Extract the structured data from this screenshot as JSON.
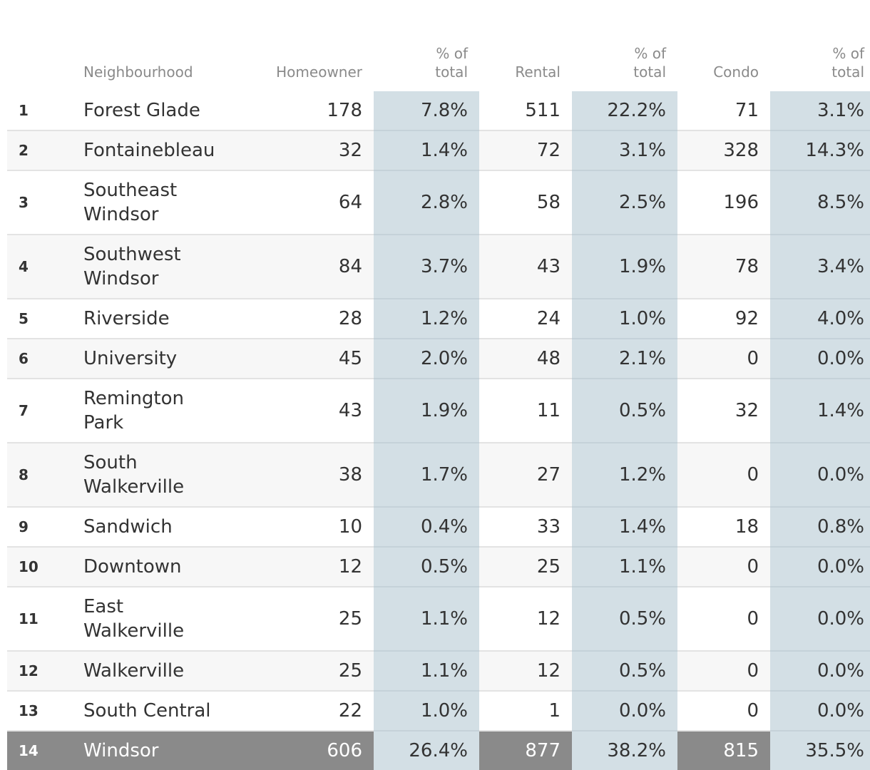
{
  "headers": {
    "neighbourhood": "Neighbourhood",
    "homeowner": "Homeowner",
    "homeowner_pct": [
      "% of",
      "total"
    ],
    "rental": "Rental",
    "rental_pct": [
      "% of",
      "total"
    ],
    "condo": "Condo",
    "condo_pct": [
      "% of",
      "total"
    ]
  },
  "rows": [
    {
      "rank": "1",
      "name": "Forest Glade",
      "homeowner": "178",
      "homeowner_pct": "7.8%",
      "rental": "511",
      "rental_pct": "22.2%",
      "condo": "71",
      "condo_pct": "3.1%"
    },
    {
      "rank": "2",
      "name": "Fontainebleau",
      "homeowner": "32",
      "homeowner_pct": "1.4%",
      "rental": "72",
      "rental_pct": "3.1%",
      "condo": "328",
      "condo_pct": "14.3%"
    },
    {
      "rank": "3",
      "name": "Southeast Windsor",
      "homeowner": "64",
      "homeowner_pct": "2.8%",
      "rental": "58",
      "rental_pct": "2.5%",
      "condo": "196",
      "condo_pct": "8.5%"
    },
    {
      "rank": "4",
      "name": "Southwest Windsor",
      "homeowner": "84",
      "homeowner_pct": "3.7%",
      "rental": "43",
      "rental_pct": "1.9%",
      "condo": "78",
      "condo_pct": "3.4%"
    },
    {
      "rank": "5",
      "name": "Riverside",
      "homeowner": "28",
      "homeowner_pct": "1.2%",
      "rental": "24",
      "rental_pct": "1.0%",
      "condo": "92",
      "condo_pct": "4.0%"
    },
    {
      "rank": "6",
      "name": "University",
      "homeowner": "45",
      "homeowner_pct": "2.0%",
      "rental": "48",
      "rental_pct": "2.1%",
      "condo": "0",
      "condo_pct": "0.0%"
    },
    {
      "rank": "7",
      "name": "Remington Park",
      "homeowner": "43",
      "homeowner_pct": "1.9%",
      "rental": "11",
      "rental_pct": "0.5%",
      "condo": "32",
      "condo_pct": "1.4%"
    },
    {
      "rank": "8",
      "name": "South Walkerville",
      "homeowner": "38",
      "homeowner_pct": "1.7%",
      "rental": "27",
      "rental_pct": "1.2%",
      "condo": "0",
      "condo_pct": "0.0%"
    },
    {
      "rank": "9",
      "name": "Sandwich",
      "homeowner": "10",
      "homeowner_pct": "0.4%",
      "rental": "33",
      "rental_pct": "1.4%",
      "condo": "18",
      "condo_pct": "0.8%"
    },
    {
      "rank": "10",
      "name": "Downtown",
      "homeowner": "12",
      "homeowner_pct": "0.5%",
      "rental": "25",
      "rental_pct": "1.1%",
      "condo": "0",
      "condo_pct": "0.0%"
    },
    {
      "rank": "11",
      "name": "East Walkerville",
      "homeowner": "25",
      "homeowner_pct": "1.1%",
      "rental": "12",
      "rental_pct": "0.5%",
      "condo": "0",
      "condo_pct": "0.0%"
    },
    {
      "rank": "12",
      "name": "Walkerville",
      "homeowner": "25",
      "homeowner_pct": "1.1%",
      "rental": "12",
      "rental_pct": "0.5%",
      "condo": "0",
      "condo_pct": "0.0%"
    },
    {
      "rank": "13",
      "name": "South Central",
      "homeowner": "22",
      "homeowner_pct": "1.0%",
      "rental": "1",
      "rental_pct": "0.0%",
      "condo": "0",
      "condo_pct": "0.0%"
    }
  ],
  "total": {
    "rank": "14",
    "name": "Windsor",
    "homeowner": "606",
    "homeowner_pct": "26.4%",
    "rental": "877",
    "rental_pct": "38.2%",
    "condo": "815",
    "condo_pct": "35.5%"
  }
}
